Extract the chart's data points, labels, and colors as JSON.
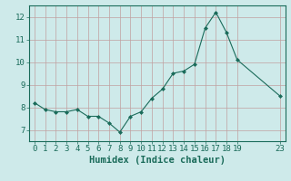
{
  "x": [
    0,
    1,
    2,
    3,
    4,
    5,
    6,
    7,
    8,
    9,
    10,
    11,
    12,
    13,
    14,
    15,
    16,
    17,
    18,
    19,
    23
  ],
  "y": [
    8.2,
    7.9,
    7.8,
    7.8,
    7.9,
    7.6,
    7.6,
    7.3,
    6.9,
    7.6,
    7.8,
    8.4,
    8.8,
    9.5,
    9.6,
    9.9,
    11.5,
    12.2,
    11.3,
    10.1,
    8.5
  ],
  "line_color": "#1a6b5a",
  "marker": "D",
  "marker_size": 2.0,
  "bg_color": "#ceeaea",
  "grid_color": "#c0a0a0",
  "xlabel": "Humidex (Indice chaleur)",
  "xlim": [
    -0.5,
    23.5
  ],
  "ylim": [
    6.5,
    12.5
  ],
  "yticks": [
    7,
    8,
    9,
    10,
    11,
    12
  ],
  "xticks": [
    0,
    1,
    2,
    3,
    4,
    5,
    6,
    7,
    8,
    9,
    10,
    11,
    12,
    13,
    14,
    15,
    16,
    17,
    18,
    19,
    23
  ],
  "tick_label_fontsize": 6.5,
  "xlabel_fontsize": 7.5
}
